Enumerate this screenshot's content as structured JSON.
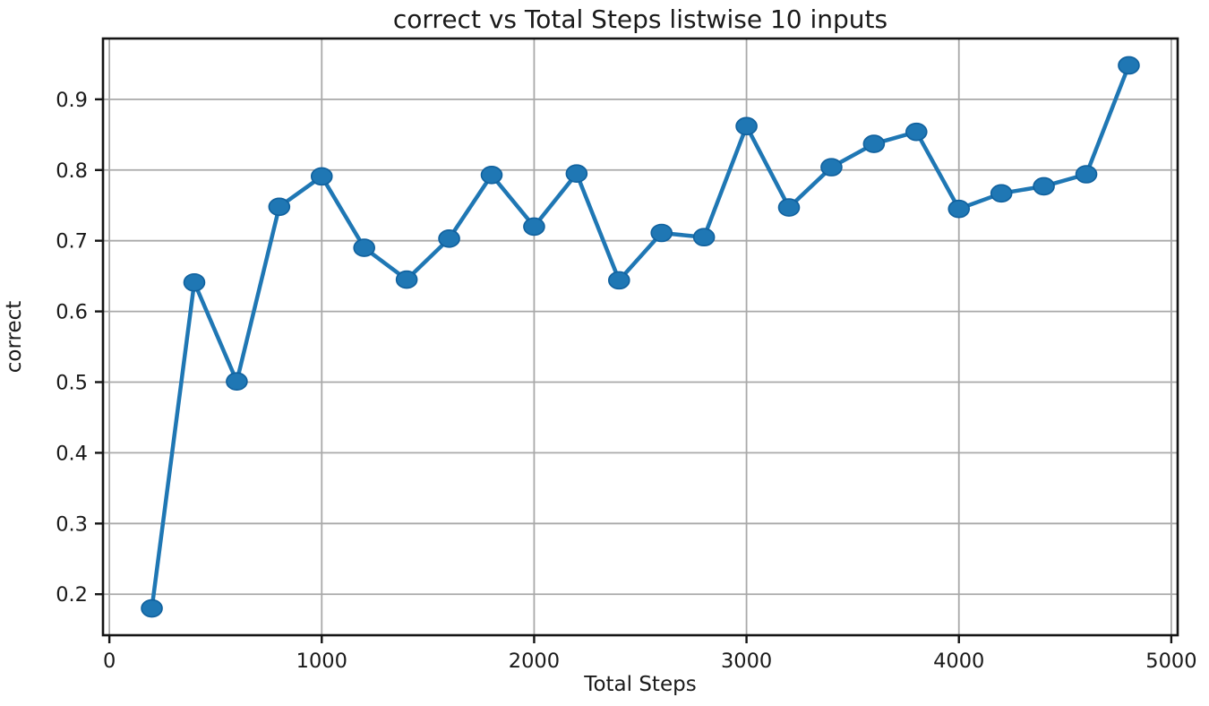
{
  "chart_data": {
    "type": "line",
    "title": "correct vs Total Steps listwise 10 inputs",
    "xlabel": "Total Steps",
    "ylabel": "correct",
    "x": [
      200,
      400,
      600,
      800,
      1000,
      1200,
      1400,
      1600,
      1800,
      2000,
      2200,
      2400,
      2600,
      2800,
      3000,
      3200,
      3400,
      3600,
      3800,
      4000,
      4200,
      4400,
      4600,
      4800
    ],
    "series": [
      {
        "name": "correct",
        "values": [
          0.18,
          0.641,
          0.501,
          0.748,
          0.791,
          0.69,
          0.645,
          0.703,
          0.793,
          0.72,
          0.795,
          0.644,
          0.711,
          0.705,
          0.862,
          0.747,
          0.804,
          0.837,
          0.854,
          0.745,
          0.767,
          0.777,
          0.794,
          0.948
        ]
      }
    ],
    "xlim": [
      -30,
      5030
    ],
    "ylim": [
      0.142,
      0.986
    ],
    "xticks": [
      0,
      1000,
      2000,
      3000,
      4000,
      5000
    ],
    "xtick_labels": [
      "0",
      "1000",
      "2000",
      "3000",
      "4000",
      "5000"
    ],
    "yticks": [
      0.2,
      0.3,
      0.4,
      0.5,
      0.6,
      0.7,
      0.8,
      0.9
    ],
    "ytick_labels": [
      "0.2",
      "0.3",
      "0.4",
      "0.5",
      "0.6",
      "0.7",
      "0.8",
      "0.9"
    ],
    "grid": true,
    "legend": false,
    "line_color": "#1f77b4",
    "marker_color": "#1f77b4",
    "marker_edge_color": "#10619e",
    "grid_color": "#a9a9a9",
    "spine_color": "#141414",
    "text_color": "#1a1a1a"
  }
}
